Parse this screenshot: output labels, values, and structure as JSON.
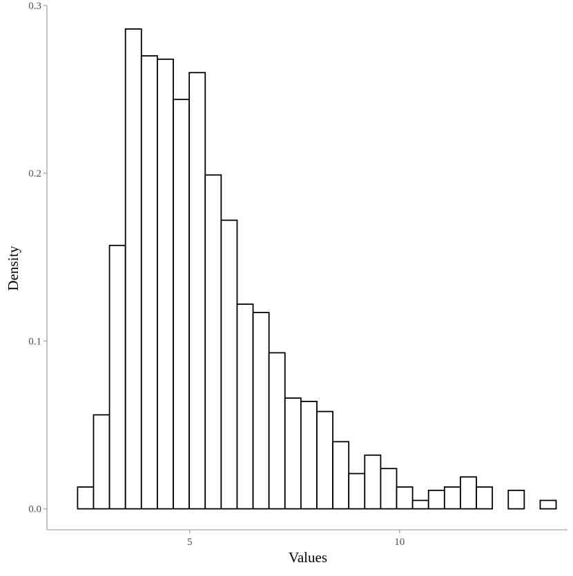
{
  "chart_data": {
    "type": "bar",
    "title": "",
    "xlabel": "Values",
    "ylabel": "Density",
    "xlim": [
      1.6,
      14.0
    ],
    "ylim": [
      -0.0125,
      0.3
    ],
    "x_ticks": [
      5,
      10
    ],
    "y_ticks": [
      0.0,
      0.1,
      0.2,
      0.3
    ],
    "x_tick_labels": [
      "5",
      "10"
    ],
    "y_tick_labels": [
      "0.0",
      "0.1",
      "0.2",
      "0.3"
    ],
    "grid": false,
    "legend": "none",
    "bar_fill": "#ffffff",
    "bar_outline": "#000000",
    "axis_color": "#b3b3b3",
    "bins": [
      {
        "x_min": 2.33,
        "x_max": 2.71,
        "density": 0.013
      },
      {
        "x_min": 2.71,
        "x_max": 3.09,
        "density": 0.056
      },
      {
        "x_min": 3.09,
        "x_max": 3.47,
        "density": 0.157
      },
      {
        "x_min": 3.47,
        "x_max": 3.85,
        "density": 0.286
      },
      {
        "x_min": 3.85,
        "x_max": 4.23,
        "density": 0.27
      },
      {
        "x_min": 4.23,
        "x_max": 4.61,
        "density": 0.268
      },
      {
        "x_min": 4.61,
        "x_max": 4.99,
        "density": 0.244
      },
      {
        "x_min": 4.99,
        "x_max": 5.37,
        "density": 0.26
      },
      {
        "x_min": 5.37,
        "x_max": 5.75,
        "density": 0.199
      },
      {
        "x_min": 5.75,
        "x_max": 6.13,
        "density": 0.172
      },
      {
        "x_min": 6.13,
        "x_max": 6.51,
        "density": 0.122
      },
      {
        "x_min": 6.51,
        "x_max": 6.89,
        "density": 0.117
      },
      {
        "x_min": 6.89,
        "x_max": 7.27,
        "density": 0.093
      },
      {
        "x_min": 7.27,
        "x_max": 7.65,
        "density": 0.066
      },
      {
        "x_min": 7.65,
        "x_max": 8.03,
        "density": 0.064
      },
      {
        "x_min": 8.03,
        "x_max": 8.41,
        "density": 0.058
      },
      {
        "x_min": 8.41,
        "x_max": 8.79,
        "density": 0.04
      },
      {
        "x_min": 8.79,
        "x_max": 9.17,
        "density": 0.021
      },
      {
        "x_min": 9.17,
        "x_max": 9.55,
        "density": 0.032
      },
      {
        "x_min": 9.55,
        "x_max": 9.93,
        "density": 0.024
      },
      {
        "x_min": 9.93,
        "x_max": 10.31,
        "density": 0.013
      },
      {
        "x_min": 10.31,
        "x_max": 10.69,
        "density": 0.005
      },
      {
        "x_min": 10.69,
        "x_max": 11.07,
        "density": 0.011
      },
      {
        "x_min": 11.07,
        "x_max": 11.45,
        "density": 0.013
      },
      {
        "x_min": 11.45,
        "x_max": 11.83,
        "density": 0.019
      },
      {
        "x_min": 11.83,
        "x_max": 12.21,
        "density": 0.013
      },
      {
        "x_min": 12.21,
        "x_max": 12.59,
        "density": 0.0
      },
      {
        "x_min": 12.59,
        "x_max": 12.97,
        "density": 0.011
      },
      {
        "x_min": 12.97,
        "x_max": 13.35,
        "density": 0.0
      },
      {
        "x_min": 13.35,
        "x_max": 13.73,
        "density": 0.005
      }
    ]
  }
}
